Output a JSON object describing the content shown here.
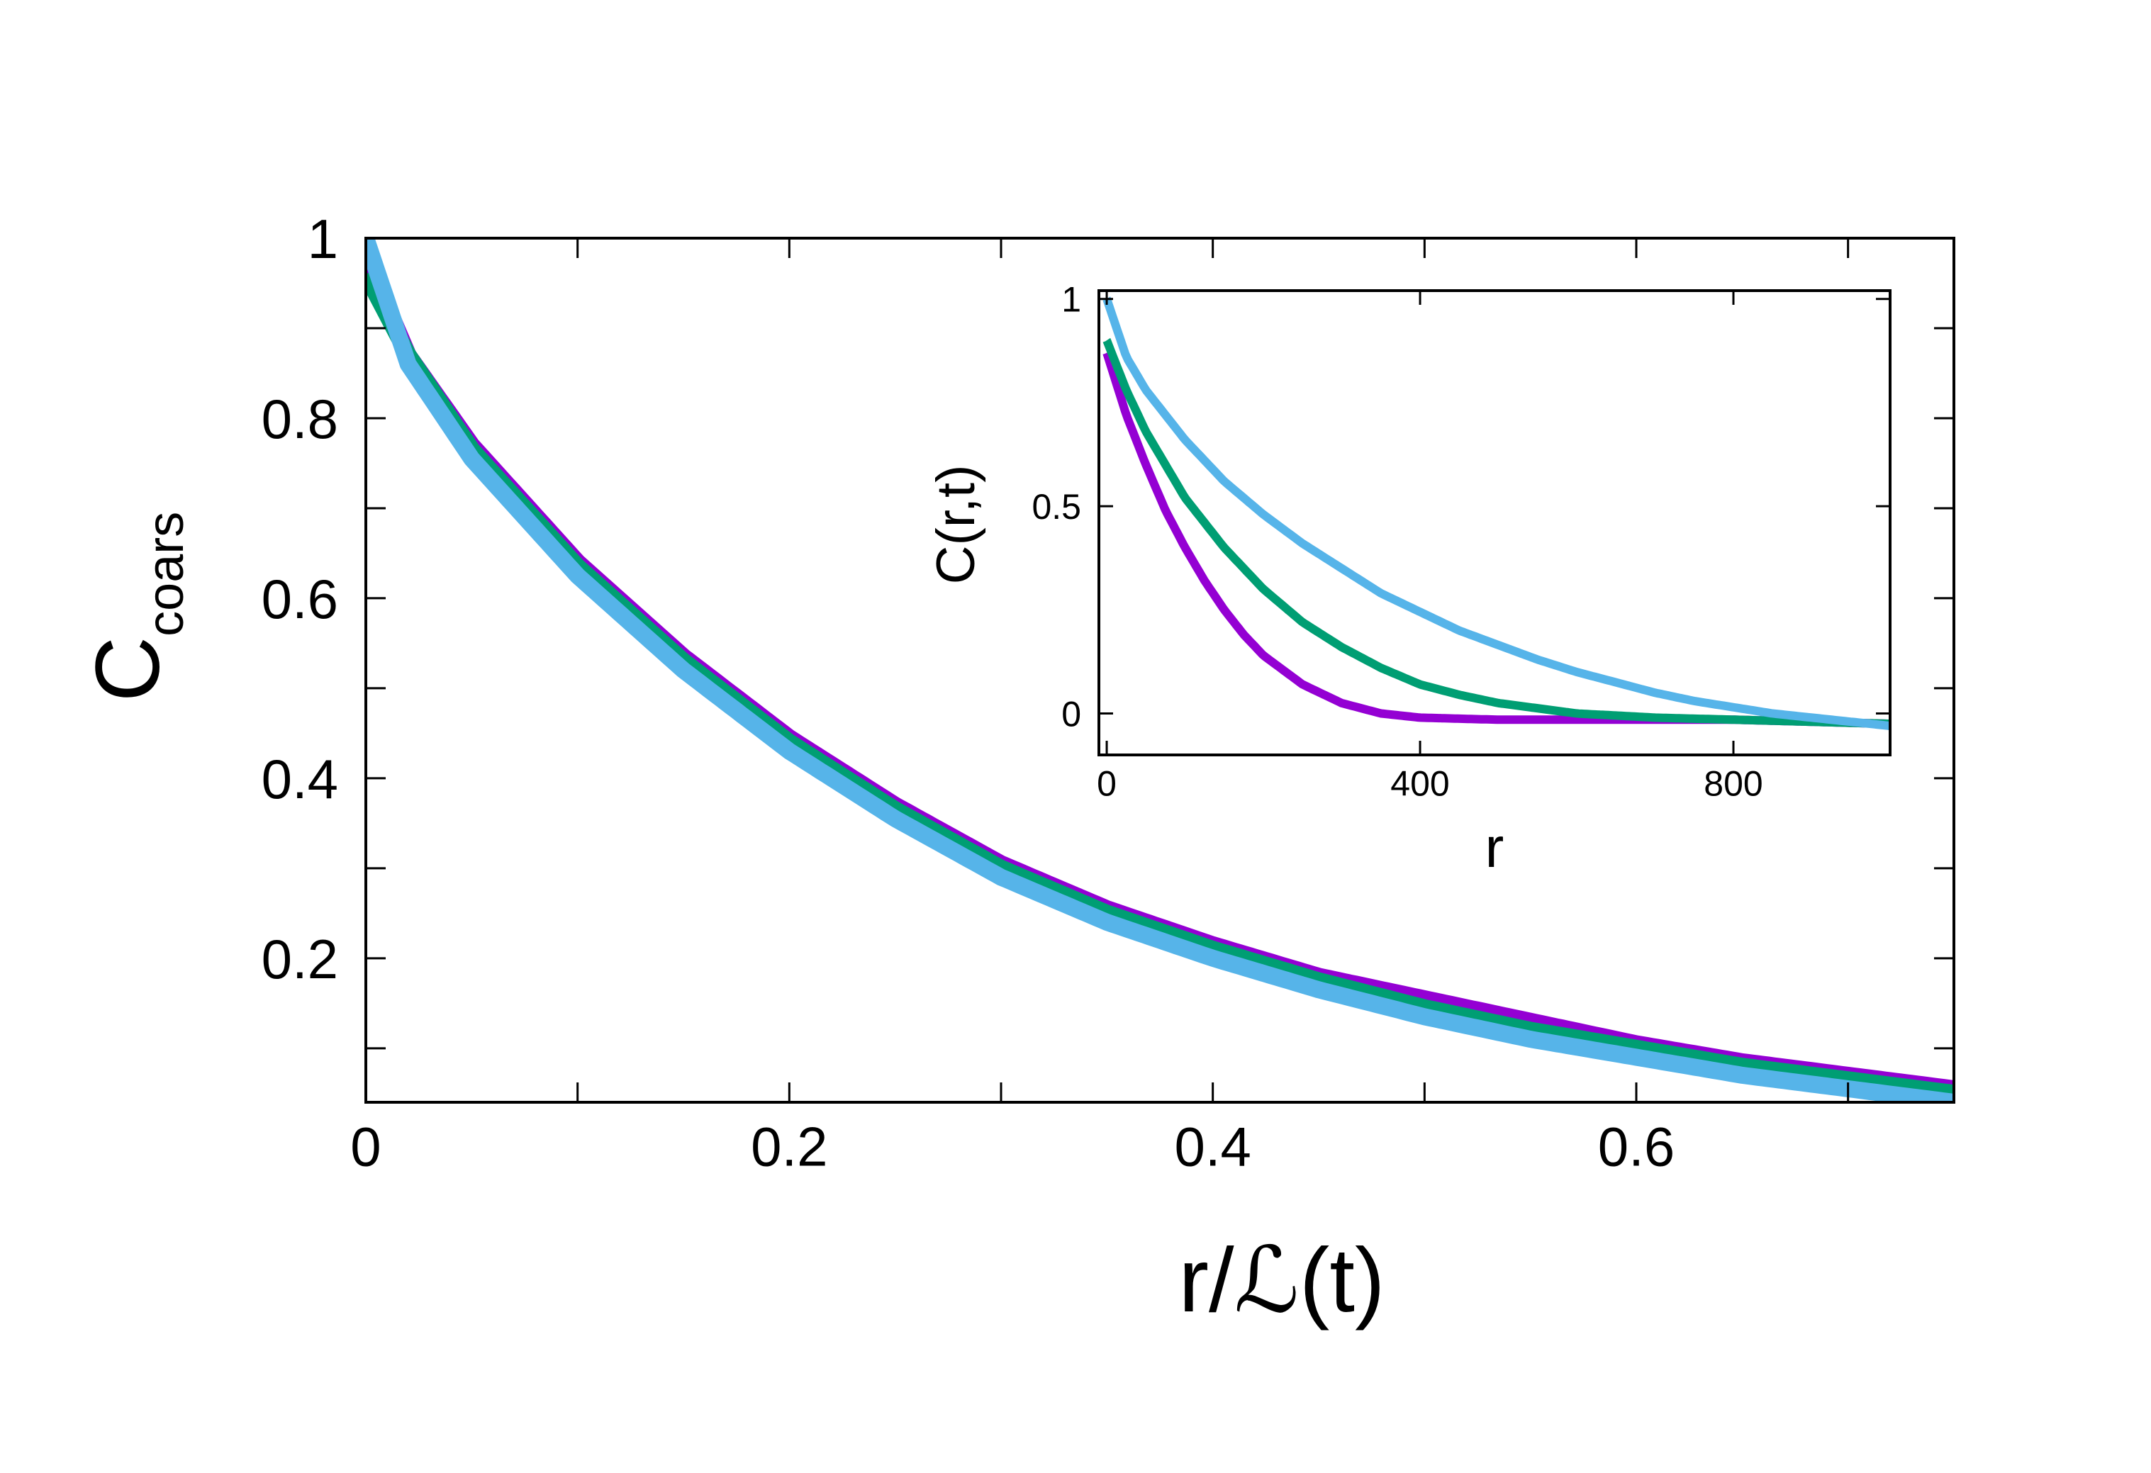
{
  "chart_data": [
    {
      "type": "line",
      "role": "main",
      "xlabel": "r/ℒ(t)",
      "ylabel_main": "C",
      "ylabel_sub": "coars",
      "xlim": [
        0,
        0.75
      ],
      "ylim": [
        0.04,
        1.0
      ],
      "xticks": [
        0,
        0.2,
        0.4,
        0.6
      ],
      "xtick_labels": [
        "0",
        "0.2",
        "0.4",
        "0.6"
      ],
      "xticks_minor": [
        0.1,
        0.3,
        0.5,
        0.7
      ],
      "yticks": [
        0.2,
        0.4,
        0.6,
        0.8,
        1.0
      ],
      "ytick_labels": [
        "0.2",
        "0.4",
        "0.6",
        "0.8",
        "1"
      ],
      "yticks_minor": [
        0.1,
        0.3,
        0.5,
        0.7,
        0.9
      ],
      "grid": false,
      "legend": "none",
      "series": [
        {
          "color": "#9400d3",
          "x": [
            0,
            0.02,
            0.05,
            0.1,
            0.15,
            0.2,
            0.25,
            0.3,
            0.35,
            0.4,
            0.45,
            0.5,
            0.55,
            0.6,
            0.65,
            0.7,
            0.75
          ],
          "y": [
            0.98,
            0.87,
            0.77,
            0.64,
            0.535,
            0.445,
            0.37,
            0.305,
            0.255,
            0.215,
            0.18,
            0.155,
            0.13,
            0.105,
            0.085,
            0.07,
            0.055
          ]
        },
        {
          "color": "#009e73",
          "x": [
            0,
            0.02,
            0.05,
            0.1,
            0.15,
            0.2,
            0.25,
            0.3,
            0.35,
            0.4,
            0.45,
            0.5,
            0.55,
            0.6,
            0.65,
            0.7,
            0.75
          ],
          "y": [
            0.96,
            0.87,
            0.765,
            0.635,
            0.53,
            0.44,
            0.365,
            0.3,
            0.25,
            0.21,
            0.175,
            0.145,
            0.12,
            0.1,
            0.08,
            0.065,
            0.05
          ]
        },
        {
          "color": "#56b4e9",
          "x": [
            0,
            0.02,
            0.05,
            0.1,
            0.15,
            0.2,
            0.25,
            0.3,
            0.35,
            0.4,
            0.45,
            0.5,
            0.55,
            0.6,
            0.65,
            0.7,
            0.75
          ],
          "y": [
            1.0,
            0.86,
            0.755,
            0.625,
            0.52,
            0.43,
            0.355,
            0.29,
            0.24,
            0.2,
            0.165,
            0.135,
            0.11,
            0.09,
            0.07,
            0.055,
            0.04
          ]
        }
      ]
    },
    {
      "type": "line",
      "role": "inset",
      "xlabel": "r",
      "ylabel": "C(r,t)",
      "xlim": [
        -10,
        1000
      ],
      "ylim": [
        -0.1,
        1.02
      ],
      "xticks": [
        0,
        400,
        800
      ],
      "xtick_labels": [
        "0",
        "400",
        "800"
      ],
      "yticks": [
        0,
        0.5,
        1
      ],
      "ytick_labels": [
        "0",
        "0.5",
        "1"
      ],
      "grid": false,
      "legend": "none",
      "series": [
        {
          "color": "#9400d3",
          "x": [
            0,
            25,
            50,
            75,
            100,
            125,
            150,
            175,
            200,
            250,
            300,
            350,
            400,
            500,
            600,
            700,
            800,
            900,
            1000
          ],
          "y": [
            0.87,
            0.72,
            0.6,
            0.49,
            0.4,
            0.32,
            0.25,
            0.19,
            0.14,
            0.07,
            0.025,
            0.0,
            -0.01,
            -0.015,
            -0.015,
            -0.015,
            -0.015,
            -0.02,
            -0.025
          ]
        },
        {
          "color": "#009e73",
          "x": [
            0,
            25,
            50,
            75,
            100,
            150,
            200,
            250,
            300,
            350,
            400,
            450,
            500,
            600,
            700,
            800,
            900,
            1000
          ],
          "y": [
            0.9,
            0.78,
            0.68,
            0.6,
            0.52,
            0.4,
            0.3,
            0.22,
            0.16,
            0.11,
            0.07,
            0.045,
            0.025,
            0.0,
            -0.01,
            -0.015,
            -0.02,
            -0.025
          ]
        },
        {
          "color": "#56b4e9",
          "x": [
            0,
            25,
            50,
            100,
            150,
            200,
            250,
            300,
            350,
            400,
            450,
            500,
            550,
            600,
            650,
            700,
            750,
            800,
            850,
            900,
            950,
            1000
          ],
          "y": [
            1.0,
            0.86,
            0.78,
            0.66,
            0.56,
            0.48,
            0.41,
            0.35,
            0.29,
            0.245,
            0.2,
            0.165,
            0.13,
            0.1,
            0.075,
            0.05,
            0.03,
            0.015,
            0.0,
            -0.01,
            -0.02,
            -0.03
          ]
        }
      ]
    }
  ]
}
